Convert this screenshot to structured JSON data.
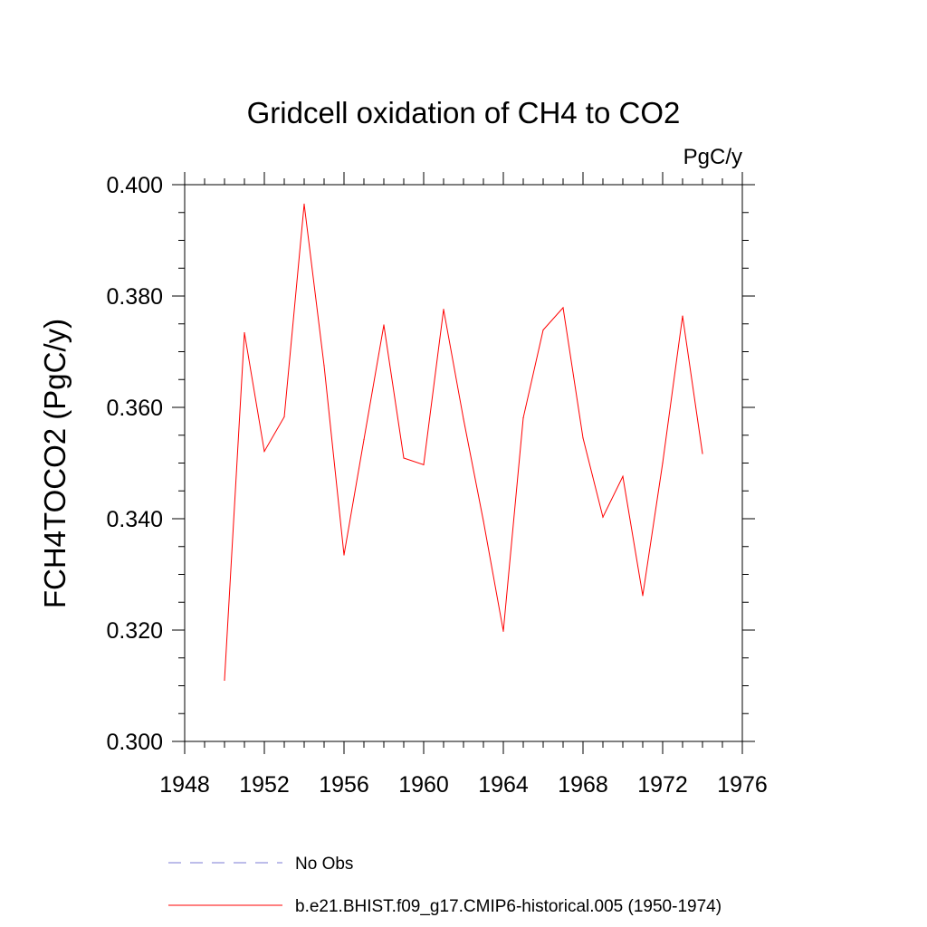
{
  "chart_data": {
    "type": "line",
    "title": "Gridcell oxidation of CH4 to CO2",
    "units": "PgC/y",
    "ylabel": "FCH4TOCO2  (PgC/y)",
    "xlabel": "",
    "xlim": [
      1948,
      1976
    ],
    "ylim": [
      0.3,
      0.4
    ],
    "x_ticks": [
      "1948",
      "1952",
      "1956",
      "1960",
      "1964",
      "1968",
      "1972",
      "1976"
    ],
    "y_ticks": [
      "0.300",
      "0.320",
      "0.340",
      "0.360",
      "0.380",
      "0.400"
    ],
    "grid": false,
    "legend_placement": "bottom",
    "legend": [
      {
        "label": "No Obs",
        "color": "#7b7bd6",
        "style": "dashed"
      },
      {
        "label": "b.e21.BHIST.f09_g17.CMIP6-historical.005 (1950-1974)",
        "color": "#ff0000",
        "style": "solid"
      }
    ],
    "series": [
      {
        "name": "b.e21.BHIST.f09_g17.CMIP6-historical.005 (1950-1974)",
        "color": "#ff0000",
        "x": [
          1950,
          1951,
          1952,
          1953,
          1954,
          1955,
          1956,
          1957,
          1958,
          1959,
          1960,
          1961,
          1962,
          1963,
          1964,
          1965,
          1966,
          1967,
          1968,
          1969,
          1970,
          1971,
          1972,
          1973,
          1974
        ],
        "y": [
          0.311,
          0.3734,
          0.3521,
          0.3583,
          0.3965,
          0.3675,
          0.3335,
          0.3542,
          0.3748,
          0.3509,
          0.3497,
          0.3776,
          0.3579,
          0.3396,
          0.3198,
          0.3581,
          0.3739,
          0.3779,
          0.3545,
          0.3403,
          0.3476,
          0.3262,
          0.35,
          0.3764,
          0.3517
        ]
      }
    ]
  }
}
